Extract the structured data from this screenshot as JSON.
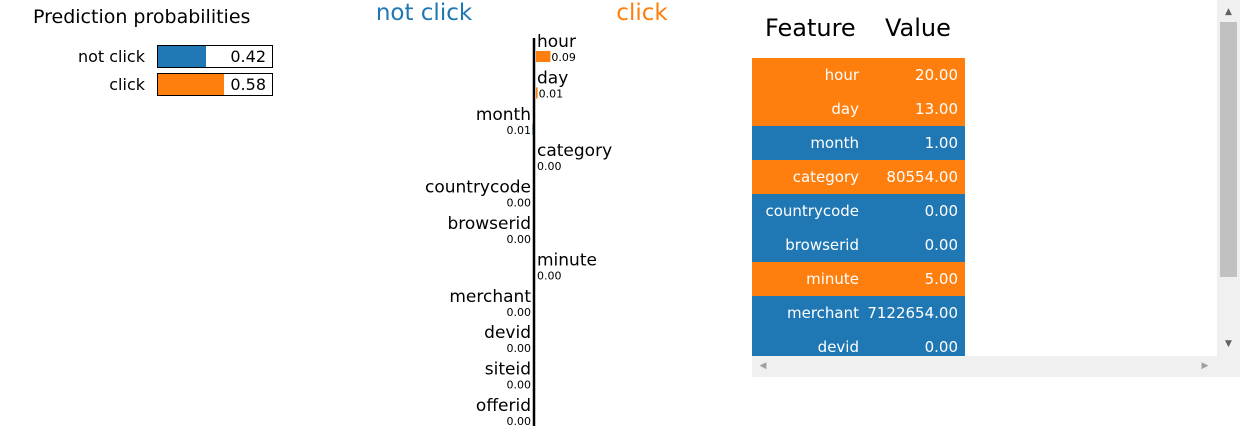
{
  "proba": {
    "title": "Prediction probabilities",
    "rows": [
      {
        "label": "not click",
        "value": 0.42,
        "value_text": "0.42",
        "color": "#1f77b4"
      },
      {
        "label": "click",
        "value": 0.58,
        "value_text": "0.58",
        "color": "#ff7f0e"
      }
    ]
  },
  "chart_data": {
    "type": "bar",
    "title": "",
    "class_labels": {
      "negative": "not click",
      "positive": "click"
    },
    "colors": {
      "negative": "#1f77b4",
      "positive": "#ff7f0e"
    },
    "xlim": [
      -0.09,
      0.09
    ],
    "features": [
      {
        "name": "hour",
        "value": 0.09,
        "value_text": "0.09",
        "side": "positive"
      },
      {
        "name": "day",
        "value": 0.01,
        "value_text": "0.01",
        "side": "positive"
      },
      {
        "name": "month",
        "value": -0.01,
        "value_text": "0.01",
        "side": "negative"
      },
      {
        "name": "category",
        "value": 0.0,
        "value_text": "0.00",
        "side": "positive"
      },
      {
        "name": "countrycode",
        "value": 0.0,
        "value_text": "0.00",
        "side": "negative"
      },
      {
        "name": "browserid",
        "value": 0.0,
        "value_text": "0.00",
        "side": "negative"
      },
      {
        "name": "minute",
        "value": 0.0,
        "value_text": "0.00",
        "side": "positive"
      },
      {
        "name": "merchant",
        "value": 0.0,
        "value_text": "0.00",
        "side": "negative"
      },
      {
        "name": "devid",
        "value": 0.0,
        "value_text": "0.00",
        "side": "negative"
      },
      {
        "name": "siteid",
        "value": 0.0,
        "value_text": "0.00",
        "side": "negative"
      },
      {
        "name": "offerid",
        "value": 0.0,
        "value_text": "0.00",
        "side": "negative"
      }
    ]
  },
  "table": {
    "headers": {
      "feature": "Feature",
      "value": "Value"
    },
    "rows": [
      {
        "feature": "hour",
        "value": "20.00",
        "color": "#ff7f0e"
      },
      {
        "feature": "day",
        "value": "13.00",
        "color": "#ff7f0e"
      },
      {
        "feature": "month",
        "value": "1.00",
        "color": "#1f77b4"
      },
      {
        "feature": "category",
        "value": "80554.00",
        "color": "#ff7f0e"
      },
      {
        "feature": "countrycode",
        "value": "0.00",
        "color": "#1f77b4"
      },
      {
        "feature": "browserid",
        "value": "0.00",
        "color": "#1f77b4"
      },
      {
        "feature": "minute",
        "value": "5.00",
        "color": "#ff7f0e"
      },
      {
        "feature": "merchant",
        "value": "7122654.00",
        "color": "#1f77b4"
      },
      {
        "feature": "devid",
        "value": "0.00",
        "color": "#1f77b4"
      }
    ]
  },
  "scrollbar": {
    "up_icon": "triangle-up-icon",
    "down_icon": "triangle-down-icon",
    "left_icon": "triangle-left-icon",
    "right_icon": "triangle-right-icon"
  }
}
